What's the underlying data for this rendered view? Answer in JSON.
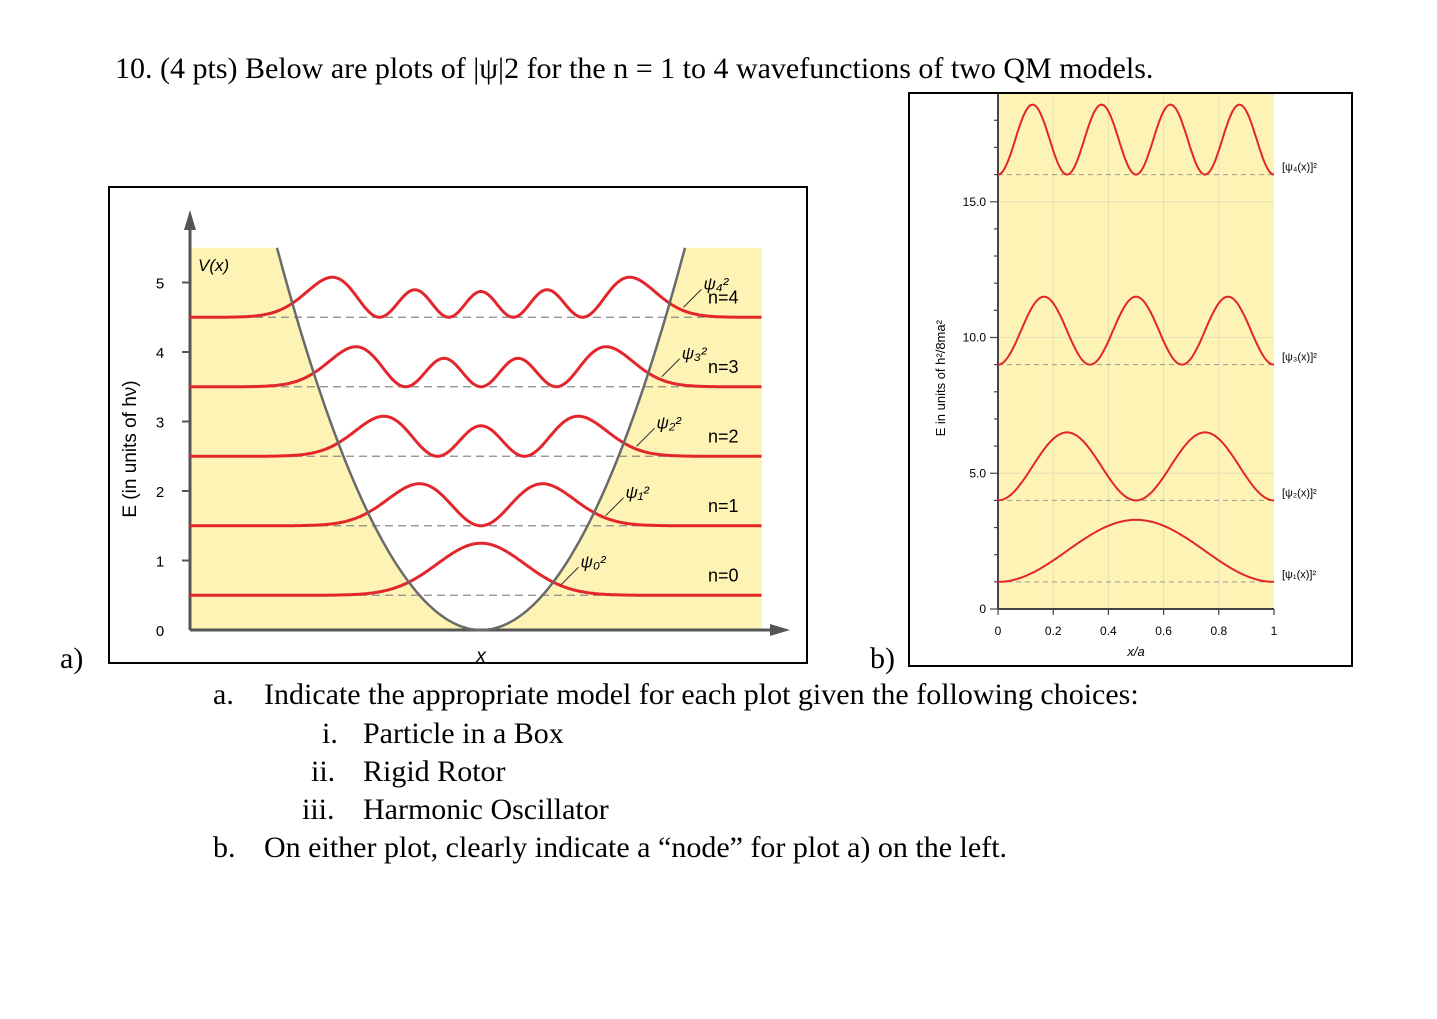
{
  "question": {
    "title": "10. (4 pts) Below are plots of |ψ|2 for the n = 1 to 4 wavefunctions of two QM models."
  },
  "plot_labels": {
    "a": "a)",
    "b": "b)"
  },
  "parts": {
    "a": {
      "marker": "a.",
      "text": "Indicate the appropriate model for each plot given the following choices:",
      "choices": [
        {
          "marker": "i.",
          "text": "Particle in a Box"
        },
        {
          "marker": "ii.",
          "text": "Rigid Rotor"
        },
        {
          "marker": "iii.",
          "text": "Harmonic Oscillator"
        }
      ]
    },
    "b": {
      "marker": "b.",
      "text": "On either plot, clearly indicate a “node” for plot a) on the left."
    }
  },
  "colors": {
    "curve": "#e3262b",
    "fill": "#fdf3b4",
    "potential": "#6a6a6a",
    "axis": "#555555"
  },
  "chart_data": [
    {
      "type": "line",
      "ylabel": "E (in units of hν)",
      "xlabel": "x",
      "ylim": [
        0,
        5.5
      ],
      "yticks": [
        "0",
        "1",
        "2",
        "3",
        "4",
        "5"
      ],
      "potential_label": "V(x)",
      "series": [
        {
          "name": "ψ₀²",
          "level_label": "n=0",
          "energy": 0.5,
          "nodes": 0
        },
        {
          "name": "ψ₁²",
          "level_label": "n=1",
          "energy": 1.5,
          "nodes": 1
        },
        {
          "name": "ψ₂²",
          "level_label": "n=2",
          "energy": 2.5,
          "nodes": 2
        },
        {
          "name": "ψ₃²",
          "level_label": "n=3",
          "energy": 3.5,
          "nodes": 3
        },
        {
          "name": "ψ₄²",
          "level_label": "n=4",
          "energy": 4.5,
          "nodes": 4
        }
      ]
    },
    {
      "type": "line",
      "ylabel": "E in units of h²/8ma²",
      "xlabel": "x/a",
      "xlim": [
        0,
        1
      ],
      "xticks": [
        "0",
        "0.2",
        "0.4",
        "0.6",
        "0.8",
        "1"
      ],
      "yticks": [
        "0",
        "5.0",
        "10.0",
        "15.0"
      ],
      "series": [
        {
          "name": "[ψ₁(x)]²",
          "energy": 1,
          "n": 1
        },
        {
          "name": "[ψ₂(x)]²",
          "energy": 4,
          "n": 2
        },
        {
          "name": "[ψ₃(x)]²",
          "energy": 9,
          "n": 3
        },
        {
          "name": "[ψ₄(x)]²",
          "energy": 16,
          "n": 4
        }
      ]
    }
  ]
}
